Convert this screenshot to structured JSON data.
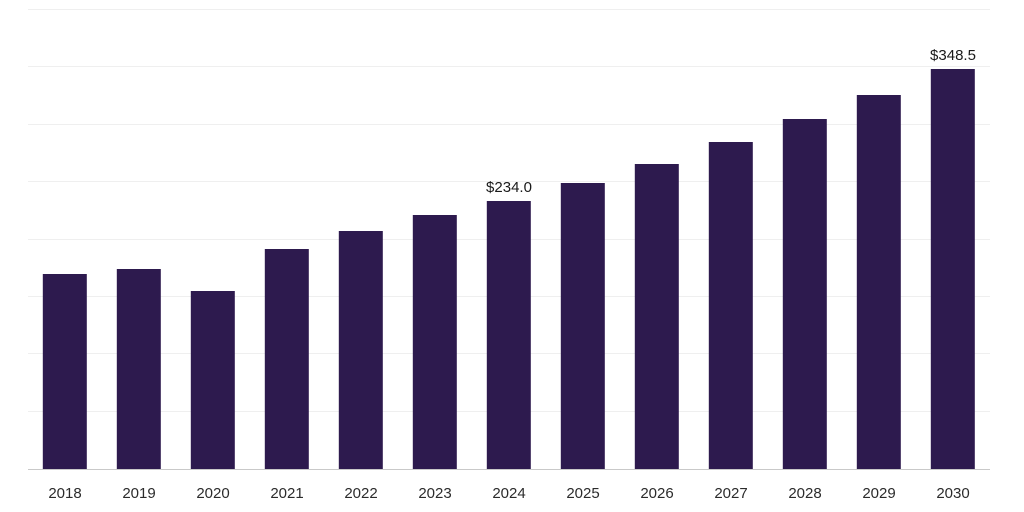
{
  "chart_data": {
    "type": "bar",
    "title": "",
    "xlabel": "",
    "ylabel": "",
    "categories": [
      "2018",
      "2019",
      "2020",
      "2021",
      "2022",
      "2023",
      "2024",
      "2025",
      "2026",
      "2027",
      "2028",
      "2029",
      "2030"
    ],
    "values": [
      170,
      174,
      155,
      192,
      207,
      221,
      234.0,
      249,
      266,
      285,
      305,
      326,
      348.5
    ],
    "bar_labels": [
      "",
      "",
      "",
      "",
      "",
      "",
      "$234.0",
      "",
      "",
      "",
      "",
      "",
      "$348.5"
    ],
    "ylim": [
      0,
      400
    ],
    "gridline_step": 50,
    "grid": true,
    "legend": "none",
    "colors": {
      "bar": "#2d1a4e",
      "gridline": "#efefef",
      "axis": "#c9c9c9",
      "value_label": "#1a1a1a",
      "tick_label": "#2b2b2b",
      "background": "#ffffff"
    }
  }
}
